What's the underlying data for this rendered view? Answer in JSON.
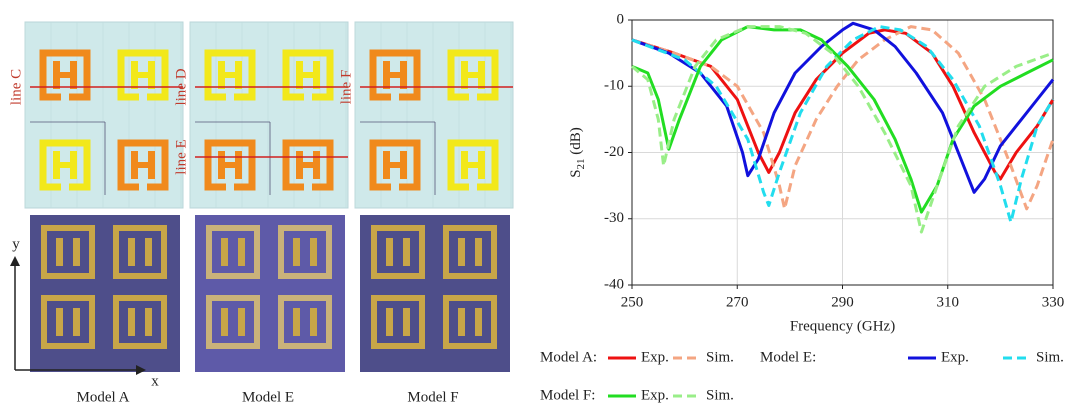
{
  "figure": {
    "line_labels": [
      "line C",
      "line D",
      "line E",
      "line F"
    ],
    "axis_labels": {
      "y": "y",
      "x": "x"
    },
    "captions": [
      "Model A",
      "Model E",
      "Model F"
    ]
  },
  "chart_data": {
    "type": "line",
    "xlabel": "Frequency (GHz)",
    "ylabel": {
      "main": "S",
      "sub": "21",
      "rest": " (dB)"
    },
    "xlim": [
      250,
      330
    ],
    "ylim": [
      -40,
      0
    ],
    "xticks": [
      250,
      270,
      290,
      310,
      330
    ],
    "yticks": [
      0,
      -10,
      -20,
      -30,
      -40
    ],
    "grid": true,
    "groups": [
      {
        "label": "Model A:",
        "series": [
          {
            "name": "Exp.",
            "color": "#ee1111",
            "dash": false,
            "x": [
              250,
              258,
              265,
              270,
              274,
              276,
              278,
              281,
              285,
              290,
              295,
              298,
              302,
              307,
              311,
              315,
              319,
              320,
              323,
              327,
              330
            ],
            "values": [
              -3,
              -5,
              -7,
              -12,
              -20,
              -23,
              -20,
              -14,
              -9,
              -5,
              -2,
              -1.5,
              -2,
              -5,
              -10,
              -17,
              -23,
              -24,
              -20,
              -16,
              -12
            ]
          },
          {
            "name": "Sim.",
            "color": "#f4a582",
            "dash": true,
            "x": [
              250,
              258,
              265,
              270,
              275,
              278,
              279,
              281,
              285,
              289,
              293,
              298,
              303,
              307,
              312,
              317,
              322,
              325,
              327,
              330
            ],
            "values": [
              -3,
              -5,
              -7,
              -10,
              -17,
              -25,
              -28.5,
              -22,
              -15,
              -10,
              -6,
              -3,
              -1,
              -1.5,
              -5,
              -12,
              -22,
              -28.5,
              -25,
              -18
            ]
          }
        ]
      },
      {
        "label": "Model E:",
        "series": [
          {
            "name": "Exp.",
            "color": "#1111dd",
            "dash": false,
            "x": [
              250,
              257,
              263,
              268,
              271,
              272,
              274,
              277,
              281,
              286,
              290,
              292,
              296,
              300,
              304,
              309,
              312,
              315,
              317,
              320,
              324,
              327,
              330
            ],
            "values": [
              -3,
              -5,
              -8,
              -13,
              -20,
              -23.5,
              -21,
              -14,
              -8,
              -4,
              -1.5,
              -0.5,
              -1.5,
              -4,
              -8,
              -14,
              -20,
              -26,
              -24,
              -19,
              -15,
              -12,
              -9
            ]
          },
          {
            "name": "Sim.",
            "color": "#22ddee",
            "dash": true,
            "x": [
              250,
              260,
              266,
              272,
              275,
              276,
              278,
              282,
              287,
              292,
              297,
              301,
              306,
              311,
              316,
              320,
              322,
              324,
              327,
              330
            ],
            "values": [
              -3,
              -6,
              -10,
              -18,
              -26,
              -28,
              -23,
              -14,
              -7,
              -3,
              -1,
              -1.5,
              -4,
              -9,
              -16,
              -25,
              -30.5,
              -24,
              -16,
              -12
            ]
          }
        ]
      },
      {
        "label": "Model F:",
        "series": [
          {
            "name": "Exp.",
            "color": "#22dd22",
            "dash": false,
            "x": [
              250,
              253,
              255,
              257,
              259,
              263,
              267,
              272,
              277,
              282,
              286,
              291,
              296,
              300,
              303,
              305,
              308,
              311,
              315,
              320,
              325,
              330
            ],
            "values": [
              -7,
              -8,
              -12,
              -19.5,
              -15,
              -7,
              -3,
              -1,
              -1.5,
              -1.5,
              -3,
              -7,
              -12,
              -18,
              -24,
              -29,
              -25,
              -18,
              -13,
              -10,
              -8,
              -6
            ]
          },
          {
            "name": "Sim.",
            "color": "#99ee88",
            "dash": true,
            "x": [
              250,
              253,
              255,
              256,
              258,
              262,
              266,
              272,
              278,
              283,
              288,
              293,
              298,
              303,
              305,
              308,
              312,
              317,
              323,
              330
            ],
            "values": [
              -7,
              -9,
              -15,
              -22,
              -15,
              -7,
              -3,
              -1,
              -1,
              -2,
              -5,
              -10,
              -17,
              -25,
              -32,
              -25,
              -16,
              -10,
              -7,
              -5
            ]
          }
        ]
      }
    ]
  }
}
